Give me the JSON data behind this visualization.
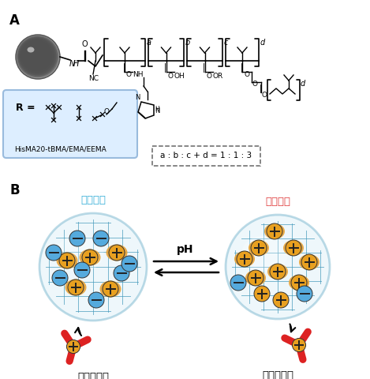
{
  "label_A": "A",
  "label_B": "B",
  "neutral_label": "中性条件",
  "acid_label": "酸性条件",
  "ph_label": "pH",
  "capture_label": "抗体を捕捉",
  "release_label": "抗体を放出",
  "r_label": "R =",
  "r_name": "HisMA20-tBMA/EMA/EEMA",
  "ratio_label": "a : b : c + d = 1 : 1 : 3",
  "neutral_color": "#3bb0d8",
  "acid_color": "#e04040",
  "sphere_grid_color": "#4499bb",
  "plus_fill": "#e8a020",
  "minus_fill": "#55aadd",
  "antibody_color": "#dd2222",
  "r_box_bg": "#ddeeff",
  "r_box_edge": "#99bbdd"
}
